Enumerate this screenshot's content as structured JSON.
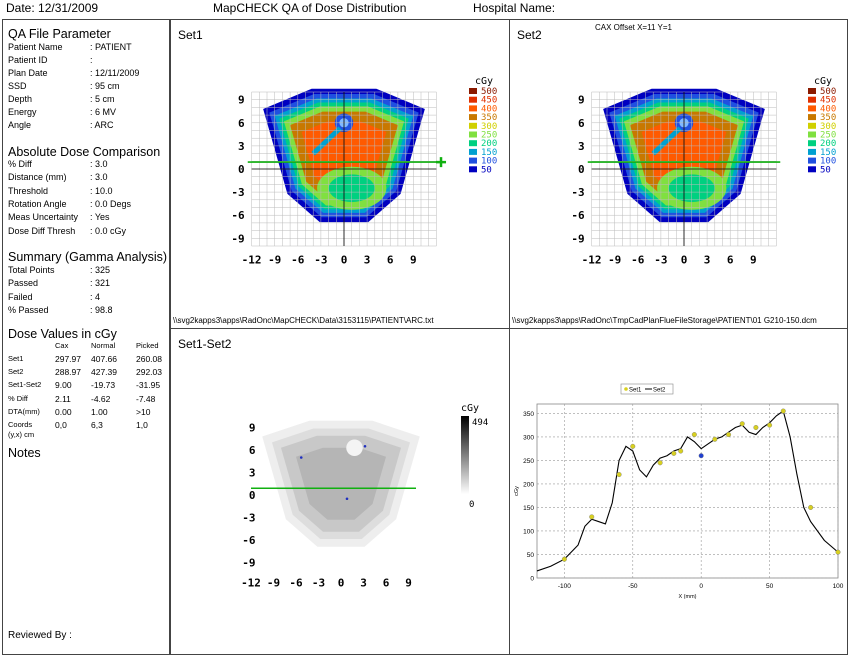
{
  "header": {
    "date": "Date: 12/31/2009",
    "title": "MapCHECK QA of Dose Distribution",
    "hospital": "Hospital Name:"
  },
  "qa_file": {
    "title": "QA File Parameter",
    "rows": [
      {
        "label": "Patient Name",
        "value": ": PATIENT"
      },
      {
        "label": "Patient ID",
        "value": ":"
      },
      {
        "label": "Plan Date",
        "value": ": 12/11/2009"
      },
      {
        "label": "SSD",
        "value": ": 95 cm"
      },
      {
        "label": "Depth",
        "value": ": 5 cm"
      },
      {
        "label": "Energy",
        "value": ": 6 MV"
      },
      {
        "label": "Angle",
        "value": ": ARC"
      }
    ]
  },
  "abs_dose": {
    "title": "Absolute Dose Comparison",
    "rows": [
      {
        "label": "% Diff",
        "value": ": 3.0"
      },
      {
        "label": "Distance (mm)",
        "value": ": 3.0"
      },
      {
        "label": "Threshold",
        "value": ": 10.0"
      },
      {
        "label": "Rotation Angle",
        "value": ": 0.0 Degs"
      },
      {
        "label": "Meas Uncertainty",
        "value": ": Yes"
      },
      {
        "label": "Dose Diff Thresh",
        "value": ": 0.0 cGy"
      }
    ]
  },
  "summary": {
    "title": "Summary (Gamma Analysis)",
    "rows": [
      {
        "label": "Total Points",
        "value": ": 325"
      },
      {
        "label": "Passed",
        "value": ": 321"
      },
      {
        "label": "Failed",
        "value": ": 4"
      },
      {
        "label": "% Passed",
        "value": ": 98.8"
      }
    ]
  },
  "dose_values": {
    "title": "Dose Values in cGy",
    "columns": [
      "Cax",
      "Normal",
      "Picked"
    ],
    "rows": [
      {
        "label": "Set1",
        "cells": [
          "297.97",
          "407.66",
          "260.08"
        ]
      },
      {
        "label": "Set2",
        "cells": [
          "288.97",
          "427.39",
          "292.03"
        ]
      },
      {
        "label": "Set1-Set2",
        "cells": [
          "9.00",
          "-19.73",
          "-31.95"
        ]
      },
      {
        "label": "% Diff",
        "cells": [
          "2.11",
          "-4.62",
          "-7.48"
        ]
      },
      {
        "label": "DTA(mm)",
        "cells": [
          "0.00",
          "1.00",
          ">10"
        ]
      },
      {
        "label": "Coords",
        "cells": [
          "0,0",
          "6,3",
          "1,0"
        ]
      },
      {
        "label": "(y,x) cm",
        "cells": [
          "",
          "",
          ""
        ]
      }
    ]
  },
  "notes_label": "Notes",
  "reviewed_by": "Reviewed By :",
  "set1": {
    "title": "Set1",
    "path": "\\\\svg2kapps3\\apps\\RadOnc\\MapCHECK\\Data\\3153115\\PATIENT\\ARC.txt"
  },
  "set2": {
    "title": "Set2",
    "cax_offset": "CAX Offset X=11 Y=1",
    "path": "\\\\svg2kapps3\\apps\\RadOnc\\TmpCadPlanFlueFileStorage\\PATIENT\\01 G210-150.dcm"
  },
  "diff": {
    "title": "Set1-Set2",
    "unit": "cGy",
    "scale_max": "494",
    "scale_min": "0"
  },
  "dose_legend": {
    "unit": "cGy",
    "levels": [
      {
        "label": "500",
        "color": "#8b1a00"
      },
      {
        "label": "450",
        "color": "#e03000"
      },
      {
        "label": "400",
        "color": "#ff5a00"
      },
      {
        "label": "350",
        "color": "#c87800"
      },
      {
        "label": "300",
        "color": "#d0d000"
      },
      {
        "label": "250",
        "color": "#80e040"
      },
      {
        "label": "200",
        "color": "#00d080"
      },
      {
        "label": "150",
        "color": "#00a0d0"
      },
      {
        "label": "100",
        "color": "#2050e0"
      },
      {
        "label": "50",
        "color": "#0000c0"
      }
    ]
  },
  "map_axes": {
    "x_ticks": [
      "-12",
      "-9",
      "-6",
      "-3",
      "0",
      "3",
      "6",
      "9"
    ],
    "y_ticks": [
      "9",
      "6",
      "3",
      "0",
      "-3",
      "-6",
      "-9"
    ]
  },
  "chart_data": {
    "type": "line",
    "legend": [
      "Set1",
      "Set2"
    ],
    "xlabel": "X (mm)",
    "ylabel": "cGy",
    "xlim": [
      -120,
      100
    ],
    "ylim": [
      0,
      370
    ],
    "x_ticks": [
      "-100",
      "-50",
      "0",
      "50",
      "100"
    ],
    "y_ticks": [
      "0",
      "50",
      "100",
      "150",
      "200",
      "250",
      "300",
      "350"
    ],
    "series": [
      {
        "name": "Set2",
        "x": [
          -120,
          -110,
          -100,
          -90,
          -85,
          -80,
          -75,
          -70,
          -65,
          -60,
          -55,
          -50,
          -45,
          -40,
          -35,
          -30,
          -25,
          -20,
          -15,
          -10,
          -5,
          0,
          5,
          10,
          15,
          20,
          25,
          30,
          35,
          40,
          45,
          50,
          55,
          60,
          65,
          70,
          75,
          80,
          90,
          100
        ],
        "y": [
          15,
          25,
          40,
          70,
          110,
          125,
          120,
          115,
          160,
          250,
          280,
          270,
          230,
          215,
          240,
          255,
          260,
          270,
          275,
          300,
          290,
          275,
          285,
          295,
          300,
          310,
          320,
          325,
          310,
          305,
          320,
          330,
          345,
          355,
          300,
          220,
          150,
          120,
          80,
          55
        ]
      },
      {
        "name": "Set1",
        "x": [
          -100,
          -80,
          -60,
          -50,
          -30,
          -20,
          -15,
          -5,
          0,
          10,
          20,
          30,
          40,
          50,
          60,
          80,
          100
        ],
        "y": [
          40,
          130,
          220,
          280,
          245,
          265,
          270,
          305,
          260,
          295,
          305,
          328,
          320,
          325,
          355,
          150,
          55
        ]
      }
    ]
  }
}
